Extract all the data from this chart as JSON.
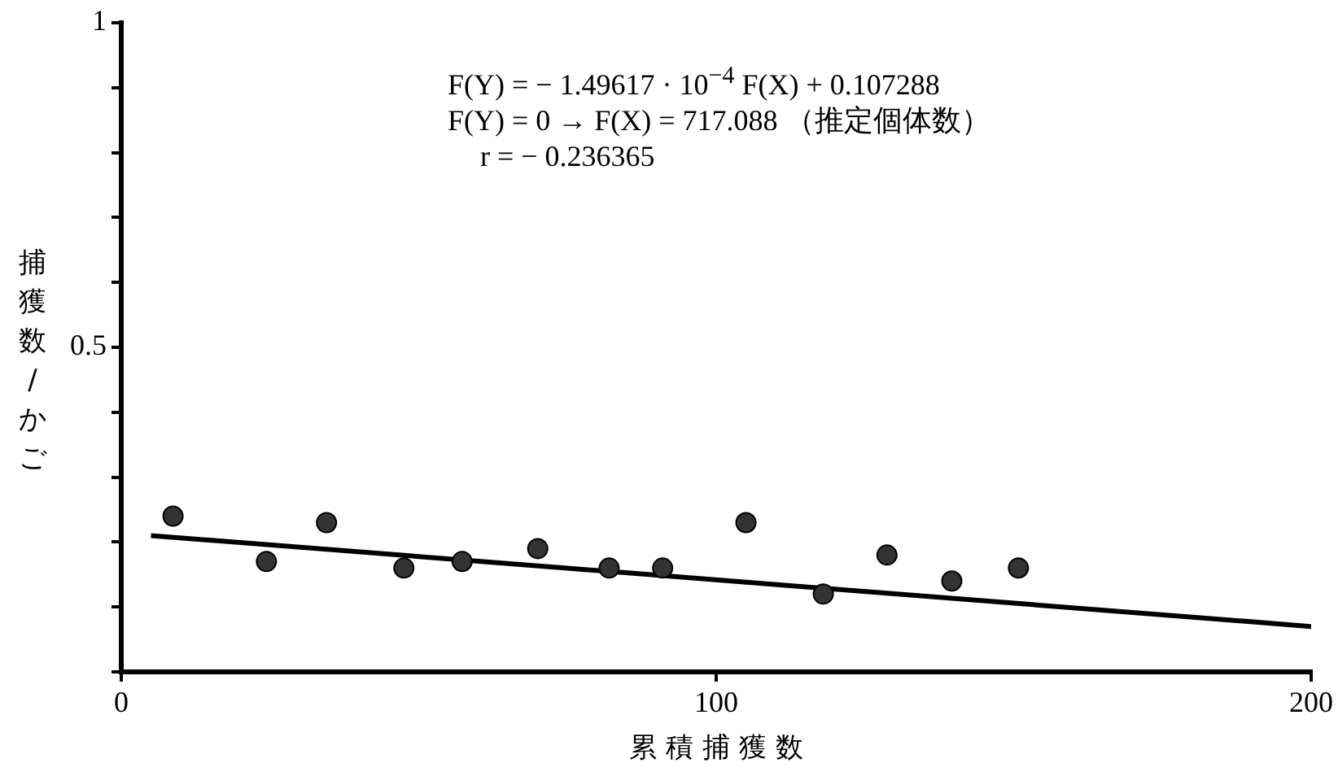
{
  "chart_data": {
    "type": "scatter",
    "xlabel": "累 積 捕 獲 数",
    "ylabel": "捕獲数/かご",
    "annotations": [
      "F(Y) = − 1.49617 · 10$^{−4}$ F(X) + 0.107288",
      "F(Y) = 0 →  F(X) = 717.088 （推定個体数）",
      "r = − 0.236365"
    ],
    "xlim": [
      0,
      200
    ],
    "xticks": [
      0,
      100,
      200
    ],
    "ylim": [
      0,
      1
    ],
    "yticks": [
      {
        "value": 0,
        "label": null
      },
      {
        "value": 0.1,
        "label": null
      },
      {
        "value": 0.2,
        "label": null
      },
      {
        "value": 0.3,
        "label": null
      },
      {
        "value": 0.4,
        "label": null
      },
      {
        "value": 0.5,
        "label": "0.5"
      },
      {
        "value": 0.6,
        "label": null
      },
      {
        "value": 0.7,
        "label": null
      },
      {
        "value": 0.8,
        "label": null
      },
      {
        "value": 0.9,
        "label": null
      },
      {
        "value": 1,
        "label": "1"
      }
    ],
    "legend": false,
    "series": [
      {
        "marker": "circle",
        "color": "#333333",
        "x": [
          8.7,
          24.4,
          34.5,
          47.5,
          57.3,
          70,
          82,
          91,
          105,
          118,
          128.7,
          139.6,
          150.8
        ],
        "values": [
          0.24,
          0.17,
          0.23,
          0.16,
          0.17,
          0.19,
          0.16,
          0.16,
          0.23,
          0.12,
          0.18,
          0.14,
          0.16
        ]
      },
      {
        "type": "line",
        "color": "#000000",
        "x": [
          5,
          200
        ],
        "values": [
          0.21,
          0.07
        ]
      }
    ]
  }
}
